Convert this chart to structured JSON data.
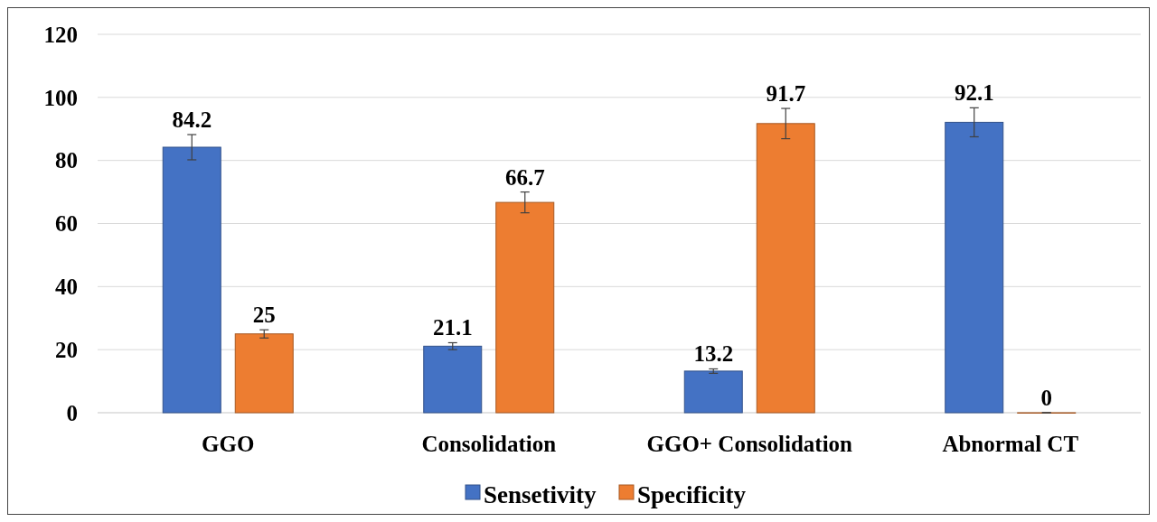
{
  "chart_data": {
    "type": "bar",
    "categories": [
      "GGO",
      "Consolidation",
      "GGO+ Consolidation",
      "Abnormal CT"
    ],
    "series": [
      {
        "name": "Sensetivity",
        "color": "#4472c4",
        "values": [
          84.2,
          21.1,
          13.2,
          92.1
        ],
        "errors": [
          4,
          1.1,
          0.7,
          4.6
        ]
      },
      {
        "name": "Specificity",
        "color": "#ed7d31",
        "values": [
          25,
          66.7,
          91.7,
          0
        ],
        "errors": [
          1.3,
          3.3,
          4.8,
          0
        ]
      }
    ],
    "ylim": [
      0,
      120
    ],
    "yticks": [
      0,
      20,
      40,
      60,
      80,
      100,
      120
    ],
    "grid": "y",
    "legend": "bottom",
    "data_labels": true
  }
}
